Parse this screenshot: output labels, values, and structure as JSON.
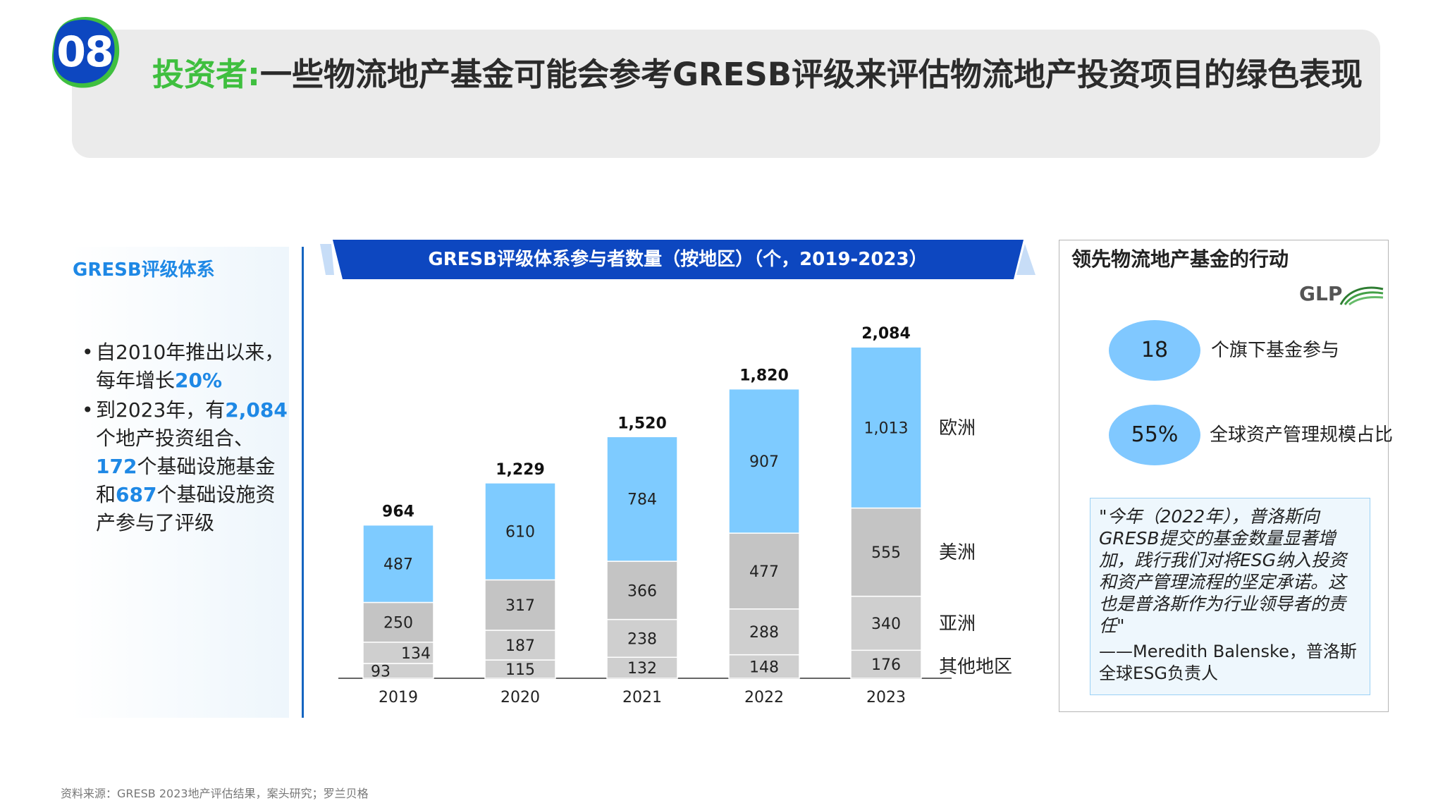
{
  "header": {
    "badge": "08",
    "title_accent": "投资者:",
    "title_rest": "一些物流地产基金可能会参考GRESB评级来评估物流地产投资项目的绿色表现"
  },
  "left": {
    "title": "GRESB评级体系",
    "bullet1": {
      "a": "自2010年推出以来，每年增长",
      "hl": "20%"
    },
    "bullet2": {
      "a": "到2023年，有",
      "hl1": "2,084",
      "b": "个地产投资组合、",
      "hl2": "172",
      "c": "个基础设施基金和",
      "hl3": "687",
      "d": "个基础设施资产参与了评级"
    }
  },
  "chart_data": {
    "type": "bar",
    "stacked": true,
    "title": "GRESB评级体系参与者数量（按地区）（个，2019-2023）",
    "categories": [
      "2019",
      "2020",
      "2021",
      "2022",
      "2023"
    ],
    "series": [
      {
        "name": "其他地区",
        "values": [
          93,
          115,
          132,
          148,
          176
        ],
        "color": "#cfcfcf"
      },
      {
        "name": "亚洲",
        "values": [
          134,
          187,
          238,
          288,
          340
        ],
        "color": "#cfcfcf"
      },
      {
        "name": "美洲",
        "values": [
          250,
          317,
          366,
          477,
          555
        ],
        "color": "#c4c4c4"
      },
      {
        "name": "欧洲",
        "values": [
          487,
          610,
          784,
          907,
          1013
        ],
        "color": "#7ecbff"
      }
    ],
    "series_labels": [
      [
        "93",
        "115",
        "132",
        "148",
        "176"
      ],
      [
        "134",
        "187",
        "238",
        "288",
        "340"
      ],
      [
        "250",
        "317",
        "366",
        "477",
        "555"
      ],
      [
        "487",
        "610",
        "784",
        "907",
        "1,013"
      ]
    ],
    "totals": [
      "964",
      "1,229",
      "1,520",
      "1,820",
      "2,084"
    ],
    "ylim": [
      0,
      2200
    ],
    "legend": "right"
  },
  "right": {
    "title": "领先物流地产基金的行动",
    "logo_text": "GLP",
    "stat1_value": "18",
    "stat1_label": "个旗下基金参与",
    "stat2_value": "55%",
    "stat2_label": "全球资产管理规模占比",
    "quote": "\"今年（2022年），普洛斯向GRESB提交的基金数量显著增加，践行我们对将ESG纳入投资和资产管理流程的坚定承诺。这也是普洛斯作为行业领导者的责任\"",
    "author": "——Meredith Balenske，普洛斯全球ESG负责人"
  },
  "source": "资料来源：GRESB 2023地产评估结果，案头研究；罗兰贝格",
  "colors": {
    "accent_blue": "#1e88e5",
    "banner_blue": "#0d47c0",
    "accent_green": "#3fbf3f"
  }
}
